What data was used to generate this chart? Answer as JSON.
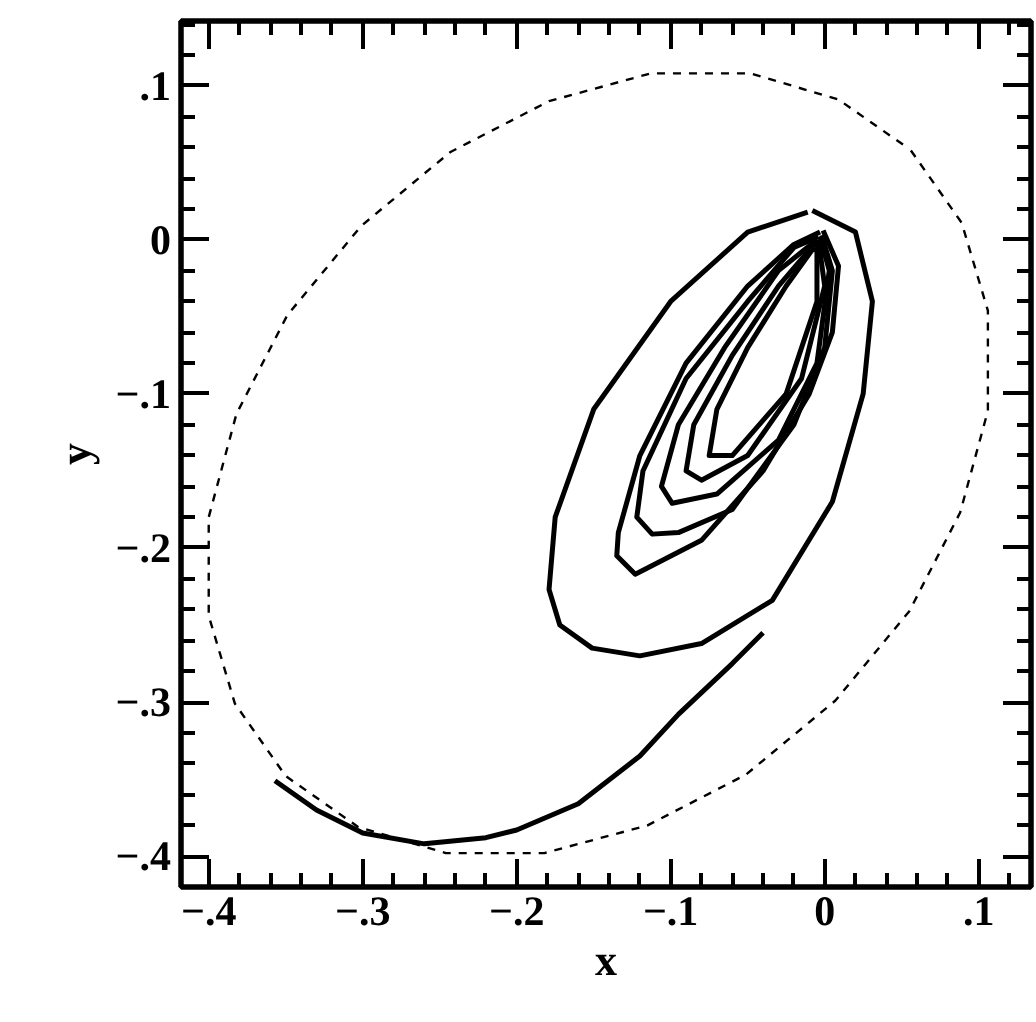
{
  "chart_data": {
    "type": "line",
    "xlabel": "x",
    "ylabel": "y",
    "xlim": [
      -0.418,
      0.134
    ],
    "ylim": [
      -0.42,
      0.142
    ],
    "xticks": [
      {
        "value": -0.4,
        "label": "−.4"
      },
      {
        "value": -0.3,
        "label": "−.3"
      },
      {
        "value": -0.2,
        "label": "−.2"
      },
      {
        "value": -0.1,
        "label": "−.1"
      },
      0,
      {
        "value": 0.1,
        "label": ".1"
      }
    ],
    "yticks": [
      {
        "value": -0.4,
        "label": "−.4"
      },
      {
        "value": -0.3,
        "label": "−.3"
      },
      {
        "value": -0.2,
        "label": "−.2"
      },
      {
        "value": -0.1,
        "label": "−.1"
      },
      0,
      {
        "value": 0.1,
        "label": ".1"
      }
    ],
    "grid": false,
    "marker": "none",
    "series": [
      {
        "color": "#000000",
        "line_style": "solid",
        "x": [
          -0.357,
          -0.33,
          -0.3,
          -0.26,
          -0.22,
          -0.2,
          -0.16,
          -0.12,
          -0.095,
          -0.06,
          -0.04
        ],
        "values": [
          -0.351,
          -0.37,
          -0.385,
          -0.392,
          -0.388,
          -0.383,
          -0.366,
          -0.335,
          -0.308,
          -0.275,
          -0.255
        ]
      },
      {
        "color": "#000000",
        "line_style": "solid",
        "x": [
          -0.008,
          0.02,
          0.031,
          0.025,
          0.005,
          -0.034,
          -0.08,
          -0.12,
          -0.151,
          -0.172,
          -0.179,
          -0.175,
          -0.15,
          -0.1,
          -0.05,
          -0.011
        ],
        "values": [
          0.019,
          0.005,
          -0.04,
          -0.1,
          -0.17,
          -0.234,
          -0.262,
          -0.27,
          -0.265,
          -0.25,
          -0.227,
          -0.18,
          -0.11,
          -0.04,
          0.005,
          0.018
        ]
      },
      {
        "color": "#000000",
        "line_style": "solid",
        "x": [
          -0.001,
          0.009,
          0.005,
          -0.01,
          -0.04,
          -0.08,
          -0.123,
          -0.135,
          -0.134,
          -0.12,
          -0.09,
          -0.05,
          -0.02,
          -0.003
        ],
        "values": [
          0.006,
          -0.017,
          -0.06,
          -0.1,
          -0.15,
          -0.195,
          -0.217,
          -0.205,
          -0.19,
          -0.14,
          -0.08,
          -0.03,
          -0.003,
          0.005
        ]
      },
      {
        "color": "#000000",
        "line_style": "solid",
        "x": [
          -0.002,
          0.005,
          0.0,
          -0.02,
          -0.06,
          -0.095,
          -0.112,
          -0.122,
          -0.118,
          -0.09,
          -0.05,
          -0.02,
          -0.004
        ],
        "values": [
          0.003,
          -0.02,
          -0.07,
          -0.12,
          -0.175,
          -0.19,
          -0.191,
          -0.18,
          -0.15,
          -0.09,
          -0.04,
          -0.005,
          0.002
        ]
      },
      {
        "color": "#000000",
        "line_style": "solid",
        "x": [
          -0.003,
          0.003,
          -0.005,
          -0.03,
          -0.07,
          -0.099,
          -0.106,
          -0.095,
          -0.065,
          -0.03,
          -0.005
        ],
        "values": [
          0.002,
          -0.02,
          -0.08,
          -0.13,
          -0.165,
          -0.171,
          -0.16,
          -0.12,
          -0.07,
          -0.02,
          0.0
        ]
      },
      {
        "color": "#000000",
        "line_style": "solid",
        "x": [
          -0.004,
          0.0,
          -0.015,
          -0.05,
          -0.08,
          -0.09,
          -0.085,
          -0.06,
          -0.03,
          -0.006
        ],
        "values": [
          0.0,
          -0.03,
          -0.09,
          -0.14,
          -0.156,
          -0.15,
          -0.12,
          -0.075,
          -0.03,
          -0.002
        ]
      },
      {
        "color": "#000000",
        "line_style": "solid",
        "x": [
          -0.005,
          -0.005,
          -0.025,
          -0.06,
          -0.075,
          -0.07,
          -0.05,
          -0.025,
          -0.007
        ],
        "values": [
          -0.002,
          -0.04,
          -0.1,
          -0.14,
          -0.14,
          -0.11,
          -0.07,
          -0.03,
          -0.005
        ]
      },
      {
        "color": "#000000",
        "line_style": "dashed",
        "x": [
          0.056,
          0.089,
          0.106,
          0.106,
          0.088,
          0.055,
          0.007,
          -0.051,
          -0.115,
          -0.182,
          -0.246,
          -0.303,
          -0.35,
          -0.383,
          -0.4,
          -0.4,
          -0.382,
          -0.349,
          -0.301,
          -0.243,
          -0.179,
          -0.113,
          -0.048,
          0.009,
          0.052
        ],
        "values": [
          0.058,
          0.011,
          -0.046,
          -0.111,
          -0.177,
          -0.241,
          -0.299,
          -0.347,
          -0.38,
          -0.398,
          -0.398,
          -0.381,
          -0.348,
          -0.301,
          -0.244,
          -0.18,
          -0.113,
          -0.049,
          0.009,
          0.057,
          0.09,
          0.108,
          0.108,
          0.091,
          0.061
        ]
      }
    ]
  }
}
